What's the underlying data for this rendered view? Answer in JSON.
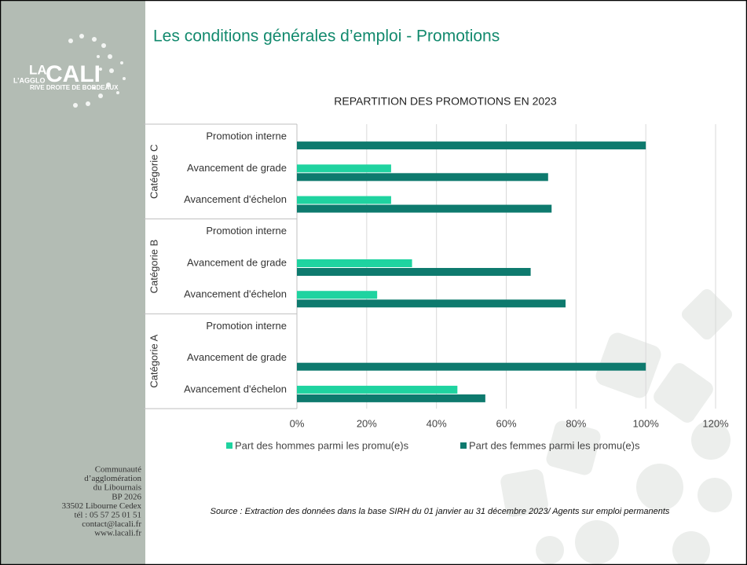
{
  "header": {
    "title": "Les conditions générales d’emploi - Promotions"
  },
  "logo": {
    "top": "LA",
    "main": "CALI",
    "agglo": "L’AGGLO",
    "tagline": "RIVE DROITE DE BORDEAUX"
  },
  "address": [
    "Communauté",
    "d’agglomération",
    "du Libournais",
    "BP 2026",
    "33502 Libourne Cedex",
    "tél : 05 57 25 01 51",
    "contact@lacali.fr",
    "www.lacali.fr"
  ],
  "source": "Source : Extraction des données dans la base SIRH du 01 janvier au 31 décembre 2023/ Agents sur emploi permanents",
  "chart_data": {
    "type": "hbar",
    "title": "REPARTITION DES PROMOTIONS EN 2023",
    "groups": [
      "Catégorie C",
      "Catégorie B",
      "Catégorie A"
    ],
    "categories": [
      "Promotion interne",
      "Avancement de grade",
      "Avancement d'échelon",
      "Promotion interne",
      "Avancement de grade",
      "Avancement d'échelon",
      "Promotion interne",
      "Avancement de grade",
      "Avancement d'échelon"
    ],
    "series": [
      {
        "name": "Part des hommes parmi les promu(e)s",
        "color": "#1fd3a0",
        "values": [
          0,
          27,
          27,
          null,
          33,
          23,
          null,
          0,
          46
        ]
      },
      {
        "name": "Part des femmes parmi les promu(e)s",
        "color": "#0e7a6e",
        "values": [
          100,
          72,
          73,
          null,
          67,
          77,
          null,
          100,
          54
        ]
      }
    ],
    "xlim": [
      0,
      120
    ],
    "xticks": [
      {
        "value": 0,
        "label": "0%"
      },
      {
        "value": 20,
        "label": "20%"
      },
      {
        "value": 40,
        "label": "40%"
      },
      {
        "value": 60,
        "label": "60%"
      },
      {
        "value": 80,
        "label": "80%"
      },
      {
        "value": 100,
        "label": "100%"
      },
      {
        "value": 120,
        "label": "120%"
      }
    ],
    "grid": true,
    "legend": "bottom"
  }
}
